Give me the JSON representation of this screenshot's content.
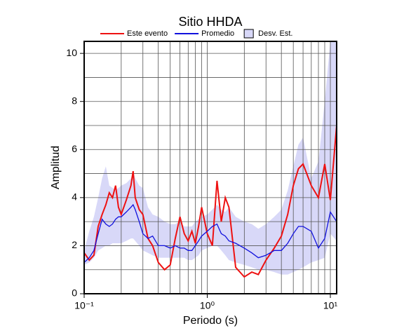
{
  "chart_data": {
    "type": "line",
    "title": "Sitio HHDA",
    "x_label": "Periodo (s)",
    "y_label": "Amplitud",
    "xscale": "log",
    "xlim": [
      0.1,
      11.25
    ],
    "ylim": [
      0,
      10.5
    ],
    "xticks": [
      {
        "value": 0.1,
        "label": "10⁻¹"
      },
      {
        "value": 1,
        "label": "10⁰"
      },
      {
        "value": 10,
        "label": "10¹"
      }
    ],
    "yticks": [
      0,
      2,
      4,
      6,
      8,
      10
    ],
    "xgrid": [
      0.2,
      0.3,
      0.4,
      0.5,
      0.6,
      0.7,
      0.8,
      0.9,
      1,
      2,
      3,
      4,
      5,
      6,
      7,
      8,
      9,
      10
    ],
    "ygrid": [
      1,
      2,
      3,
      4,
      5,
      6,
      7,
      8,
      9,
      10
    ],
    "legend": "top",
    "x": [
      0.1,
      0.11,
      0.12,
      0.13,
      0.14,
      0.15,
      0.16,
      0.17,
      0.18,
      0.19,
      0.2,
      0.22,
      0.24,
      0.25,
      0.26,
      0.28,
      0.3,
      0.33,
      0.36,
      0.4,
      0.45,
      0.5,
      0.55,
      0.6,
      0.65,
      0.7,
      0.75,
      0.8,
      0.85,
      0.9,
      1.0,
      1.1,
      1.2,
      1.3,
      1.4,
      1.5,
      1.7,
      2.0,
      2.3,
      2.6,
      3.0,
      3.5,
      4.0,
      4.5,
      5.0,
      5.5,
      6.0,
      7.0,
      8.0,
      9.0,
      10.0,
      11.25
    ],
    "band": {
      "name": "Desv. Est.",
      "color": "#d8d8f8",
      "upper": [
        1.8,
        2.6,
        3.2,
        4.0,
        4.8,
        5.3,
        4.5,
        4.4,
        4.3,
        4.4,
        4.5,
        4.6,
        4.8,
        5.1,
        4.8,
        4.5,
        4.4,
        3.6,
        3.3,
        3.2,
        3.0,
        2.9,
        2.9,
        3.0,
        2.8,
        2.8,
        2.8,
        3.0,
        3.1,
        3.2,
        3.3,
        3.5,
        3.7,
        3.5,
        3.4,
        3.6,
        3.2,
        3.0,
        2.9,
        2.7,
        2.9,
        3.2,
        3.5,
        4.3,
        5.3,
        6.2,
        6.5,
        4.8,
        5.5,
        8.0,
        10.5,
        10.5
      ],
      "lower": [
        1.2,
        1.3,
        1.5,
        1.8,
        1.9,
        2.0,
        2.0,
        2.1,
        2.1,
        2.1,
        2.1,
        2.2,
        2.3,
        2.3,
        2.2,
        2.0,
        1.8,
        1.7,
        1.6,
        1.5,
        1.5,
        1.5,
        1.5,
        1.5,
        1.5,
        1.4,
        1.4,
        1.5,
        1.6,
        1.8,
        1.9,
        2.0,
        2.0,
        1.8,
        1.6,
        1.4,
        1.3,
        1.2,
        1.1,
        1.0,
        1.0,
        0.9,
        0.8,
        0.8,
        0.9,
        1.0,
        1.1,
        1.3,
        1.4,
        1.5,
        2.5,
        2.2
      ]
    },
    "series": [
      {
        "name": "Este evento",
        "color": "#ee1111",
        "values": [
          1.7,
          1.4,
          1.6,
          2.8,
          3.3,
          3.7,
          4.2,
          4.0,
          4.5,
          3.6,
          3.3,
          3.9,
          4.5,
          5.1,
          4.0,
          3.5,
          3.3,
          2.3,
          2.0,
          1.3,
          1.0,
          1.2,
          2.3,
          3.2,
          2.5,
          2.2,
          2.6,
          2.1,
          2.8,
          3.6,
          2.5,
          2.0,
          4.7,
          3.0,
          4.0,
          3.6,
          1.1,
          0.7,
          0.9,
          0.8,
          1.4,
          1.9,
          2.4,
          3.3,
          4.5,
          5.2,
          5.4,
          4.5,
          4.0,
          5.4,
          3.9,
          7.0
        ]
      },
      {
        "name": "Promedio",
        "color": "#1111dd",
        "values": [
          1.3,
          1.5,
          1.8,
          2.5,
          3.1,
          2.9,
          2.8,
          2.9,
          3.1,
          3.2,
          3.2,
          3.4,
          3.6,
          3.7,
          3.5,
          3.0,
          2.5,
          2.3,
          2.4,
          2.0,
          2.0,
          1.9,
          2.0,
          1.9,
          1.9,
          1.8,
          1.8,
          2.0,
          2.2,
          2.4,
          2.6,
          2.8,
          2.9,
          2.5,
          2.4,
          2.2,
          2.1,
          1.9,
          1.7,
          1.5,
          1.6,
          1.8,
          1.8,
          2.1,
          2.5,
          2.8,
          2.8,
          2.6,
          1.9,
          2.3,
          3.4,
          3.0
        ]
      }
    ]
  }
}
